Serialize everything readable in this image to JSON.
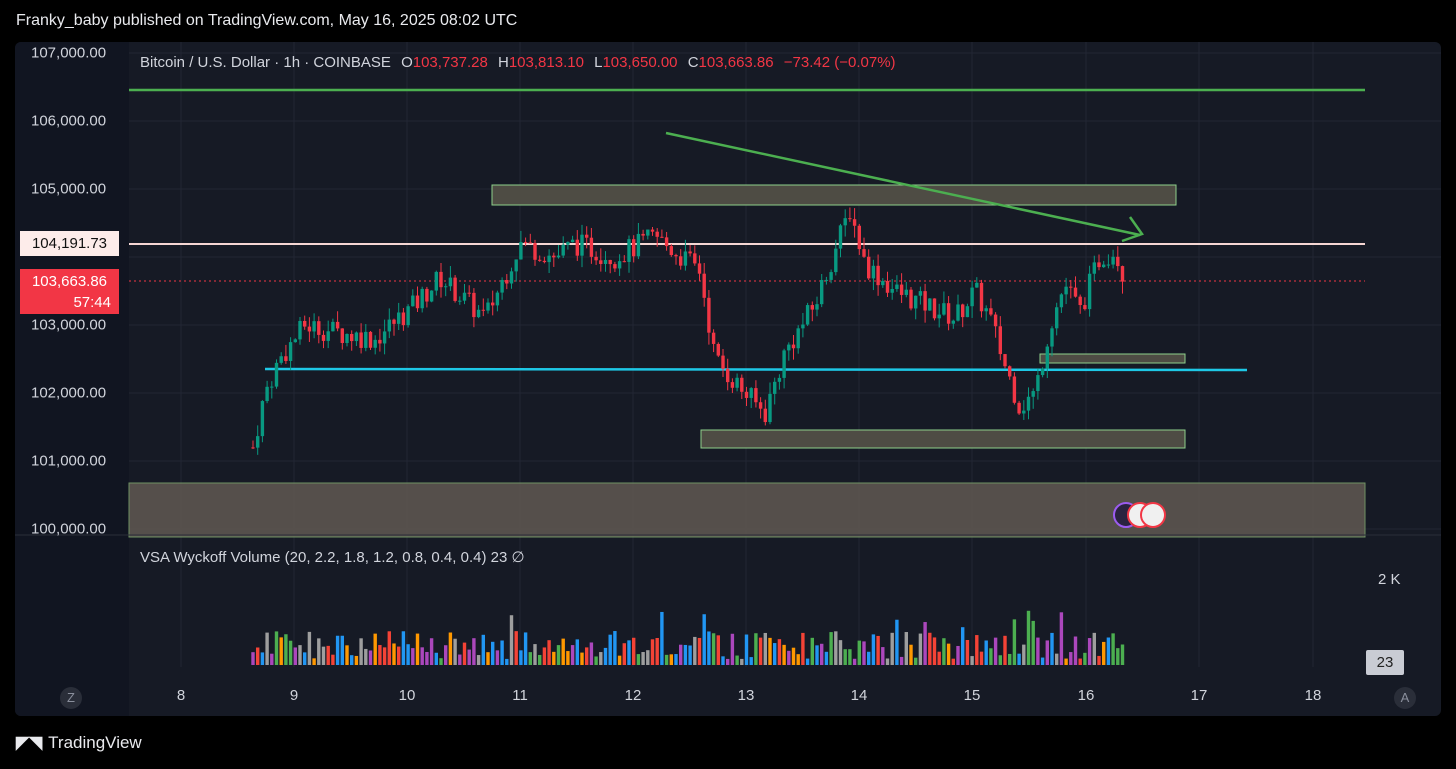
{
  "header": {
    "published_by": "Franky_baby published on TradingView.com, May 16, 2025 08:02 UTC"
  },
  "chart": {
    "symbol": "Bitcoin / U.S. Dollar · 1h · COINBASE",
    "ohlc": {
      "o_label": "O",
      "o": "103,737.28",
      "h_label": "H",
      "h": "103,813.10",
      "l_label": "L",
      "l": "103,650.00",
      "c_label": "C",
      "c": "103,663.86",
      "change": "−73.42 (−0.07%)"
    },
    "price_axis": [
      "107,000.00",
      "106,000.00",
      "105,000.00",
      "103,000.00",
      "102,000.00",
      "101,000.00",
      "100,000.00"
    ],
    "time_axis": [
      "8",
      "9",
      "10",
      "11",
      "12",
      "13",
      "14",
      "15",
      "16",
      "17",
      "18"
    ],
    "horizontal_line_label": "104,191.73",
    "last_price": {
      "price": "103,663.86",
      "countdown": "57:44"
    },
    "colors": {
      "up": "#089981",
      "down": "#f23645",
      "background": "#161a25",
      "support_line": "#1ec8e6",
      "resistance_line": "#4caf50",
      "trendline": "#4caf50"
    }
  },
  "indicator": {
    "name": "VSA Wyckoff Volume (20, 2.2, 1.8, 1.2, 0.8, 0.4, 0.4)  23  ∅",
    "scale_label": "2 K",
    "last_value": "23"
  },
  "controls": {
    "zoom_left": "Z",
    "auto_right": "A"
  },
  "footer": {
    "brand": "TradingView",
    "icon": "tv-logo-icon"
  }
}
